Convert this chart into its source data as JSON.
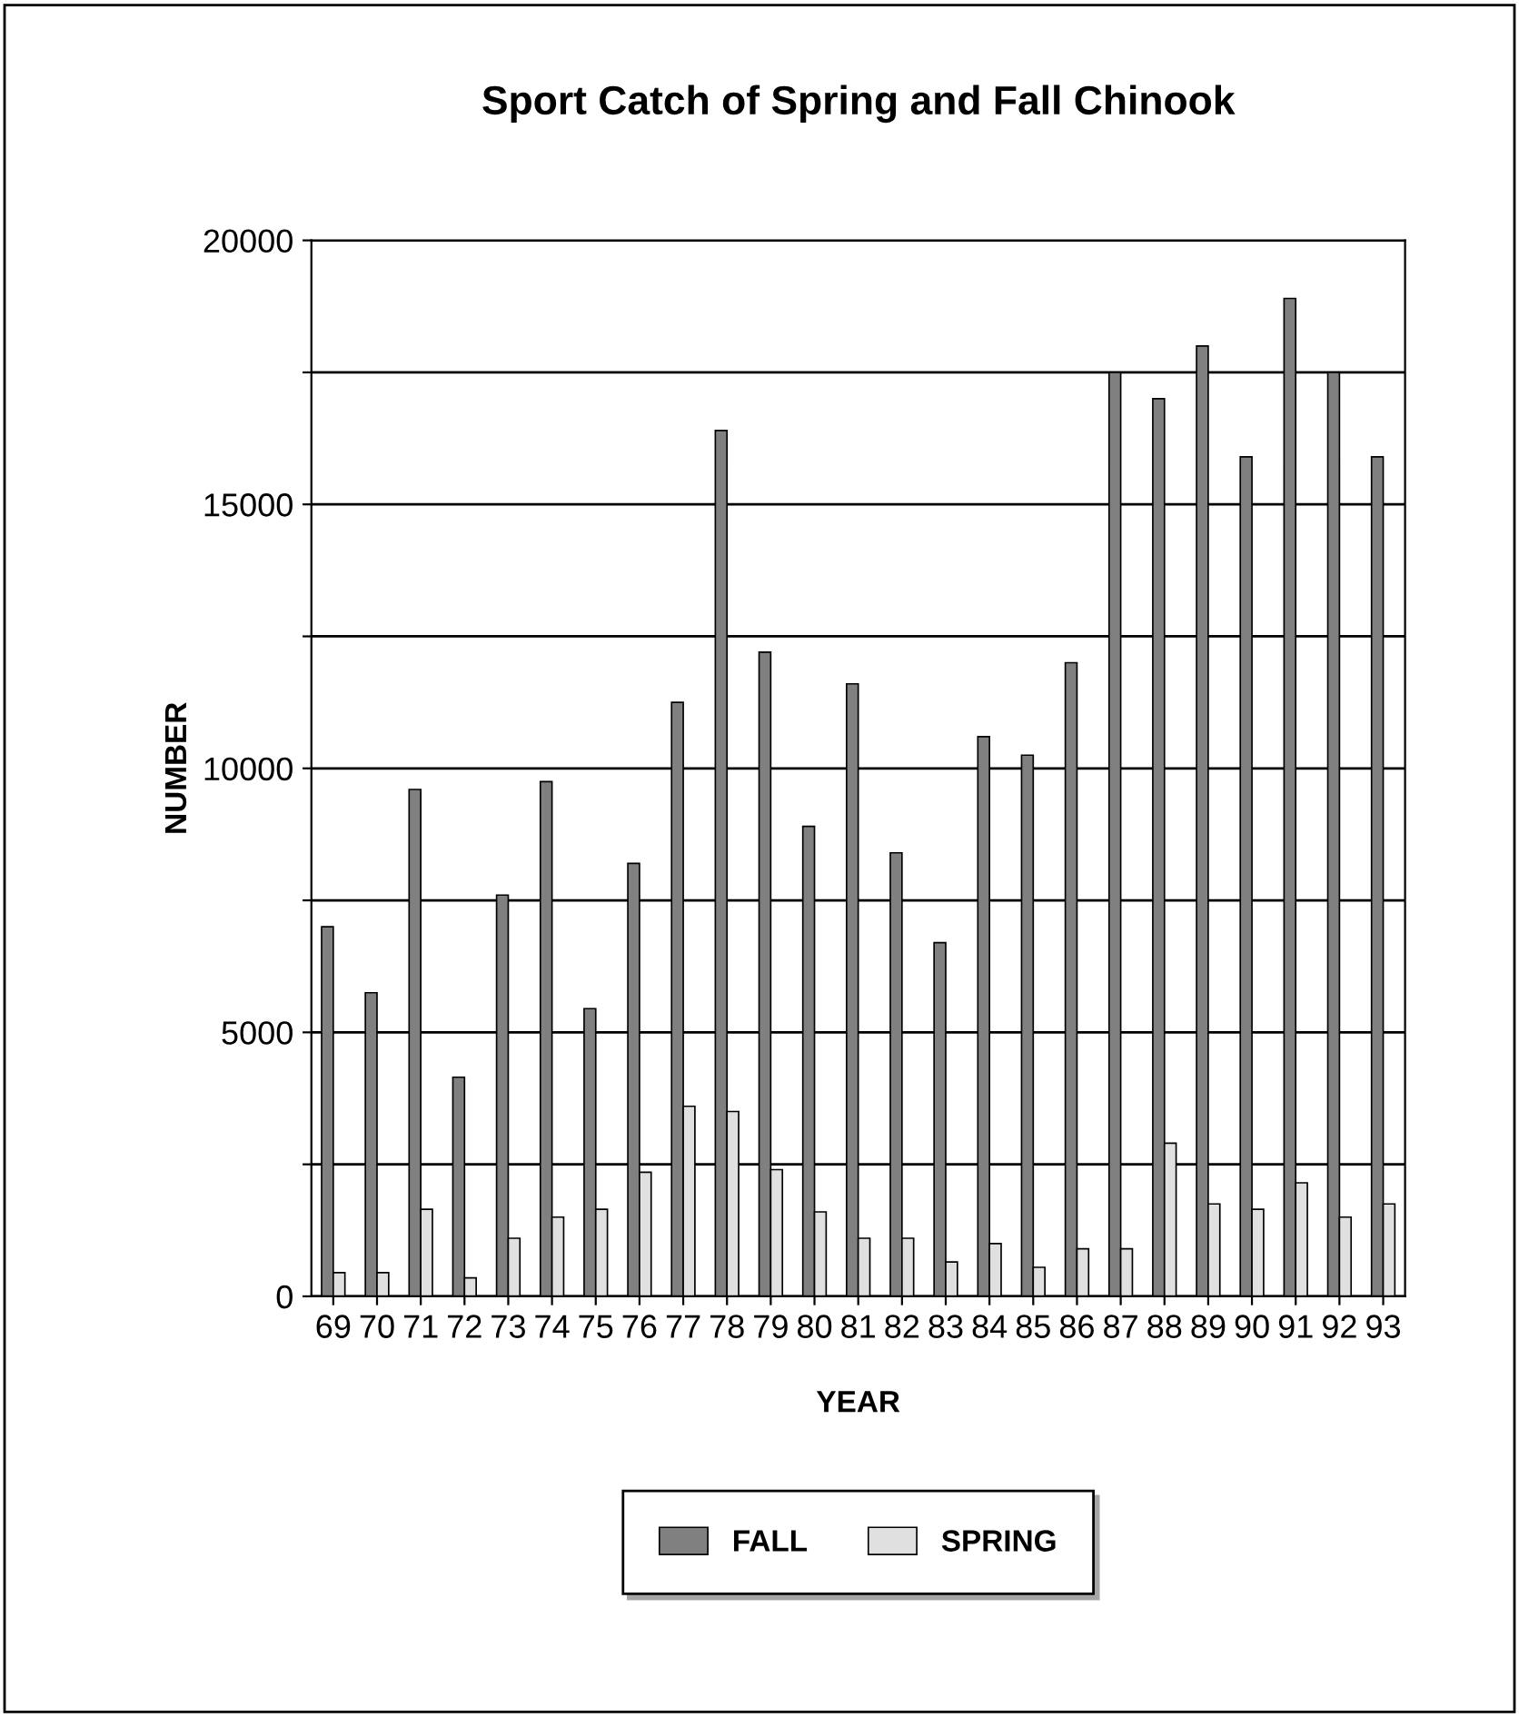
{
  "chart_data": {
    "type": "bar",
    "title": "Sport Catch of Spring and Fall Chinook",
    "xlabel": "YEAR",
    "ylabel": "NUMBER",
    "categories": [
      "69",
      "70",
      "71",
      "72",
      "73",
      "74",
      "75",
      "76",
      "77",
      "78",
      "79",
      "80",
      "81",
      "82",
      "83",
      "84",
      "85",
      "86",
      "87",
      "88",
      "89",
      "90",
      "91",
      "92",
      "93"
    ],
    "series": [
      {
        "name": "FALL",
        "color": "#808080",
        "values": [
          7000,
          5750,
          9600,
          4150,
          7600,
          9750,
          5450,
          8200,
          11250,
          16400,
          12200,
          8900,
          11600,
          8400,
          6700,
          10600,
          10250,
          12000,
          17500,
          17000,
          18000,
          15900,
          18900,
          17500,
          15900
        ]
      },
      {
        "name": "SPRING",
        "color": "#e0e0e0",
        "values": [
          450,
          450,
          1650,
          350,
          1100,
          1500,
          1650,
          2350,
          3600,
          3500,
          2400,
          1600,
          1100,
          1100,
          650,
          1000,
          550,
          900,
          900,
          2900,
          1750,
          1650,
          2150,
          1500,
          1750
        ]
      }
    ],
    "ylim": [
      0,
      20000
    ],
    "yticks": [
      0,
      {
        "value": 2500,
        "label": null
      },
      5000,
      {
        "value": 7500,
        "label": null
      },
      10000,
      {
        "value": 12500,
        "label": null
      },
      15000,
      {
        "value": 17500,
        "label": null
      },
      20000
    ],
    "grid": "y",
    "legend": "bottom"
  }
}
